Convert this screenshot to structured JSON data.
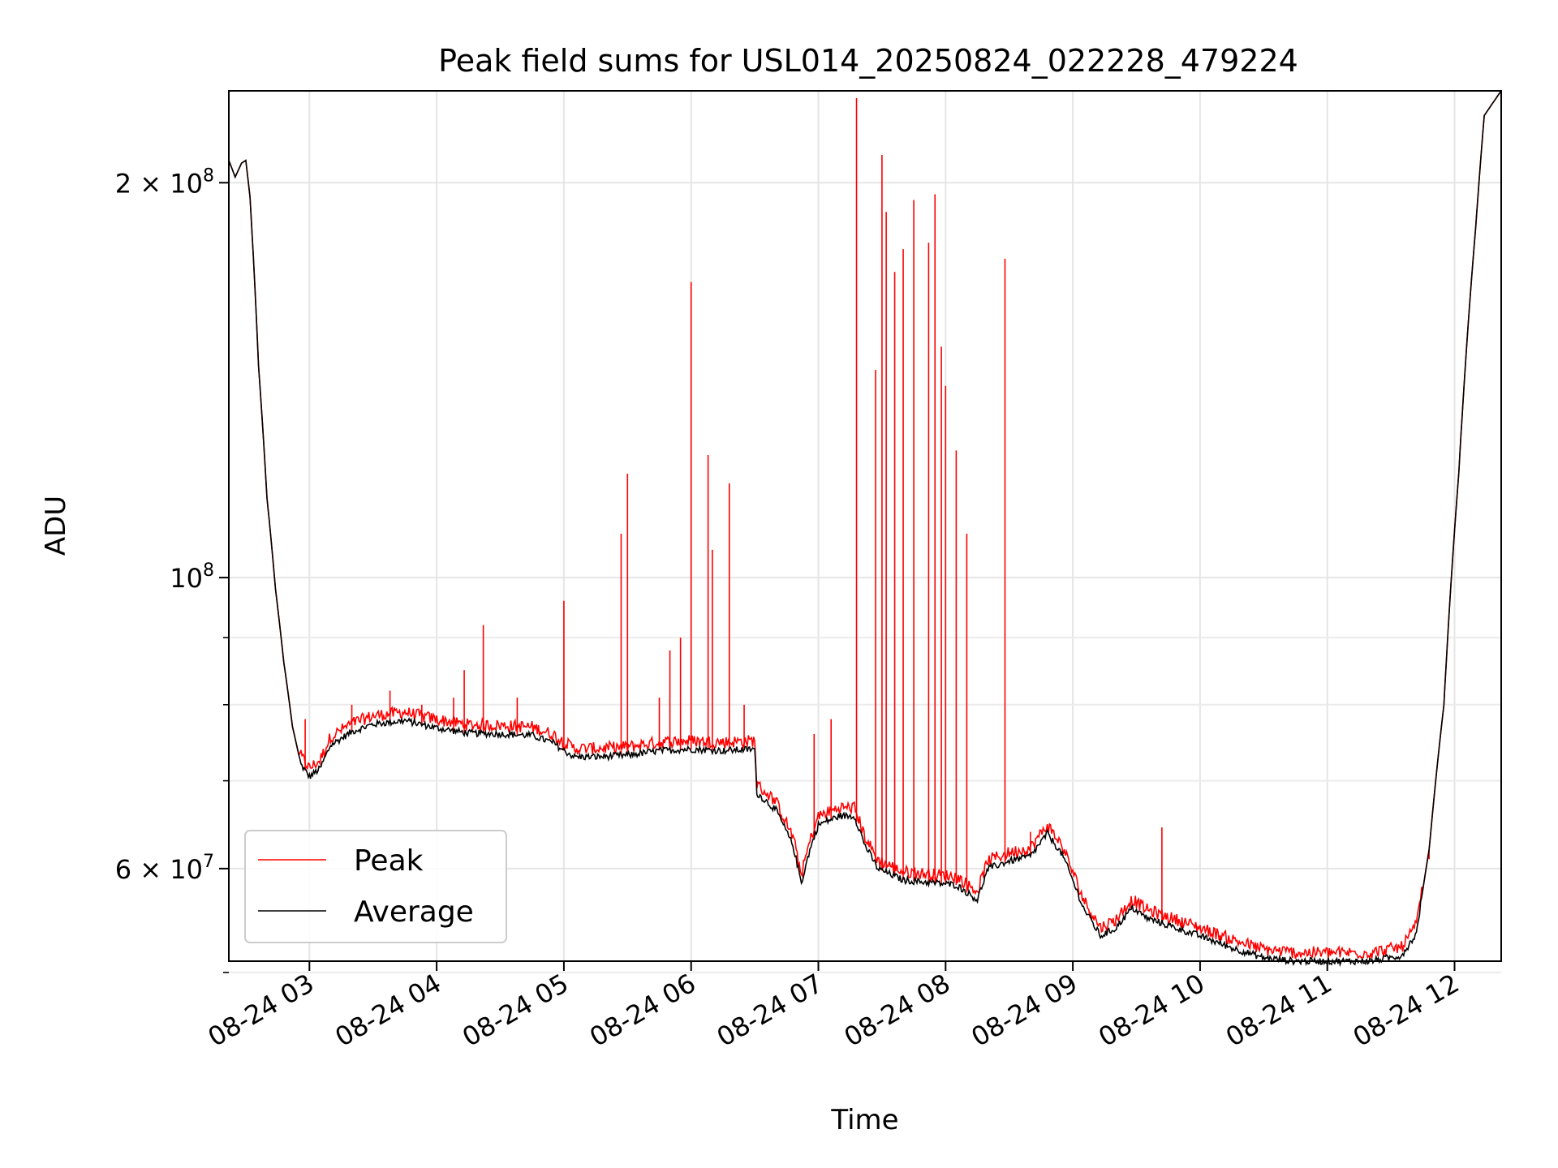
{
  "chart_data": {
    "type": "line",
    "title": "Peak field sums for USL014_20250824_022228_479224",
    "xlabel": "Time",
    "ylabel": "ADU",
    "y_scale": "log",
    "ylim": [
      51000000,
      235000000
    ],
    "xlim": [
      "08-24 02:22",
      "08-24 12:22"
    ],
    "grid": true,
    "legend_position": "lower-left",
    "x_tick_labels": [
      "08-24 03",
      "08-24 04",
      "08-24 05",
      "08-24 06",
      "08-24 07",
      "08-24 08",
      "08-24 09",
      "08-24 10",
      "08-24 11",
      "08-24 12"
    ],
    "x_ticks": [
      "08-24 03:00",
      "08-24 04:00",
      "08-24 05:00",
      "08-24 06:00",
      "08-24 07:00",
      "08-24 08:00",
      "08-24 09:00",
      "08-24 10:00",
      "08-24 11:00",
      "08-24 12:00"
    ],
    "y_major_ticks": [
      {
        "value": 200000000,
        "mantissa": "2",
        "exponent": "8"
      },
      {
        "value": 100000000,
        "mantissa": "",
        "exponent": "8"
      },
      {
        "value": 60000000,
        "mantissa": "6",
        "exponent": "7"
      }
    ],
    "y_minor_ticks": [
      90000000,
      80000000,
      70000000,
      50000000
    ],
    "series": [
      {
        "name": "Average",
        "color": "#000000",
        "points": [
          [
            "08-24 02:22",
            208000000
          ],
          [
            "08-24 02:25",
            202000000
          ],
          [
            "08-24 02:28",
            207000000
          ],
          [
            "08-24 02:30",
            208000000
          ],
          [
            "08-24 02:32",
            195000000
          ],
          [
            "08-24 02:36",
            145000000
          ],
          [
            "08-24 02:40",
            115000000
          ],
          [
            "08-24 02:44",
            98000000
          ],
          [
            "08-24 02:48",
            86000000
          ],
          [
            "08-24 02:52",
            77000000
          ],
          [
            "08-24 02:56",
            72000000
          ],
          [
            "08-24 03:00",
            70500000
          ],
          [
            "08-24 03:05",
            71500000
          ],
          [
            "08-24 03:10",
            74500000
          ],
          [
            "08-24 03:20",
            76300000
          ],
          [
            "08-24 03:30",
            77300000
          ],
          [
            "08-24 03:45",
            77800000
          ],
          [
            "08-24 04:00",
            76800000
          ],
          [
            "08-24 04:15",
            76100000
          ],
          [
            "08-24 04:30",
            76000000
          ],
          [
            "08-24 04:45",
            75800000
          ],
          [
            "08-24 04:55",
            74800000
          ],
          [
            "08-24 05:00",
            73800000
          ],
          [
            "08-24 05:05",
            73000000
          ],
          [
            "08-24 05:15",
            73000000
          ],
          [
            "08-24 05:30",
            73200000
          ],
          [
            "08-24 05:45",
            73800000
          ],
          [
            "08-24 06:00",
            74000000
          ],
          [
            "08-24 06:15",
            73800000
          ],
          [
            "08-24 06:30",
            74000000
          ],
          [
            "08-24 06:31",
            68500000
          ],
          [
            "08-24 06:40",
            66500000
          ],
          [
            "08-24 06:48",
            62500000
          ],
          [
            "08-24 06:52",
            58500000
          ],
          [
            "08-24 06:56",
            62000000
          ],
          [
            "08-24 07:00",
            64800000
          ],
          [
            "08-24 07:10",
            65800000
          ],
          [
            "08-24 07:17",
            65800000
          ],
          [
            "08-24 07:22",
            62500000
          ],
          [
            "08-24 07:28",
            60000000
          ],
          [
            "08-24 07:40",
            58800000
          ],
          [
            "08-24 07:55",
            58500000
          ],
          [
            "08-24 08:05",
            58300000
          ],
          [
            "08-24 08:15",
            56800000
          ],
          [
            "08-24 08:20",
            60000000
          ],
          [
            "08-24 08:30",
            60800000
          ],
          [
            "08-24 08:40",
            61300000
          ],
          [
            "08-24 08:48",
            63800000
          ],
          [
            "08-24 08:55",
            61500000
          ],
          [
            "08-24 09:05",
            56000000
          ],
          [
            "08-24 09:13",
            53300000
          ],
          [
            "08-24 09:20",
            54000000
          ],
          [
            "08-24 09:28",
            56000000
          ],
          [
            "08-24 09:35",
            55000000
          ],
          [
            "08-24 09:45",
            54300000
          ],
          [
            "08-24 10:00",
            53300000
          ],
          [
            "08-24 10:15",
            52200000
          ],
          [
            "08-24 10:30",
            51300000
          ],
          [
            "08-24 10:45",
            51000000
          ],
          [
            "08-24 11:00",
            51000000
          ],
          [
            "08-24 11:20",
            51000000
          ],
          [
            "08-24 11:35",
            51500000
          ],
          [
            "08-24 11:42",
            53500000
          ],
          [
            "08-24 11:48",
            62000000
          ],
          [
            "08-24 11:55",
            80000000
          ],
          [
            "08-24 12:02",
            120000000
          ],
          [
            "08-24 12:10",
            185000000
          ],
          [
            "08-24 12:14",
            225000000
          ],
          [
            "08-24 12:22",
            235000000
          ]
        ]
      },
      {
        "name": "Peak",
        "color": "#ff0000",
        "spikes": [
          [
            "08-24 02:58",
            78000000
          ],
          [
            "08-24 03:20",
            80000000
          ],
          [
            "08-24 03:38",
            82000000
          ],
          [
            "08-24 03:53",
            80000000
          ],
          [
            "08-24 04:08",
            81000000
          ],
          [
            "08-24 04:13",
            85000000
          ],
          [
            "08-24 04:22",
            92000000
          ],
          [
            "08-24 04:38",
            81000000
          ],
          [
            "08-24 05:00",
            96000000
          ],
          [
            "08-24 05:27",
            108000000
          ],
          [
            "08-24 05:30",
            120000000
          ],
          [
            "08-24 05:45",
            81000000
          ],
          [
            "08-24 05:50",
            88000000
          ],
          [
            "08-24 05:55",
            90000000
          ],
          [
            "08-24 06:00",
            168000000
          ],
          [
            "08-24 06:08",
            124000000
          ],
          [
            "08-24 06:10",
            105000000
          ],
          [
            "08-24 06:18",
            118000000
          ],
          [
            "08-24 06:25",
            80000000
          ],
          [
            "08-24 06:58",
            76000000
          ],
          [
            "08-24 07:06",
            78000000
          ],
          [
            "08-24 07:18",
            232000000
          ],
          [
            "08-24 07:27",
            144000000
          ],
          [
            "08-24 07:30",
            210000000
          ],
          [
            "08-24 07:32",
            190000000
          ],
          [
            "08-24 07:36",
            171000000
          ],
          [
            "08-24 07:40",
            178000000
          ],
          [
            "08-24 07:45",
            194000000
          ],
          [
            "08-24 07:52",
            180000000
          ],
          [
            "08-24 07:55",
            196000000
          ],
          [
            "08-24 07:58",
            150000000
          ],
          [
            "08-24 08:00",
            140000000
          ],
          [
            "08-24 08:05",
            125000000
          ],
          [
            "08-24 08:10",
            108000000
          ],
          [
            "08-24 08:28",
            175000000
          ],
          [
            "08-24 08:40",
            64000000
          ],
          [
            "08-24 09:42",
            64500000
          ],
          [
            "08-24 11:48",
            61000000
          ]
        ]
      }
    ]
  }
}
